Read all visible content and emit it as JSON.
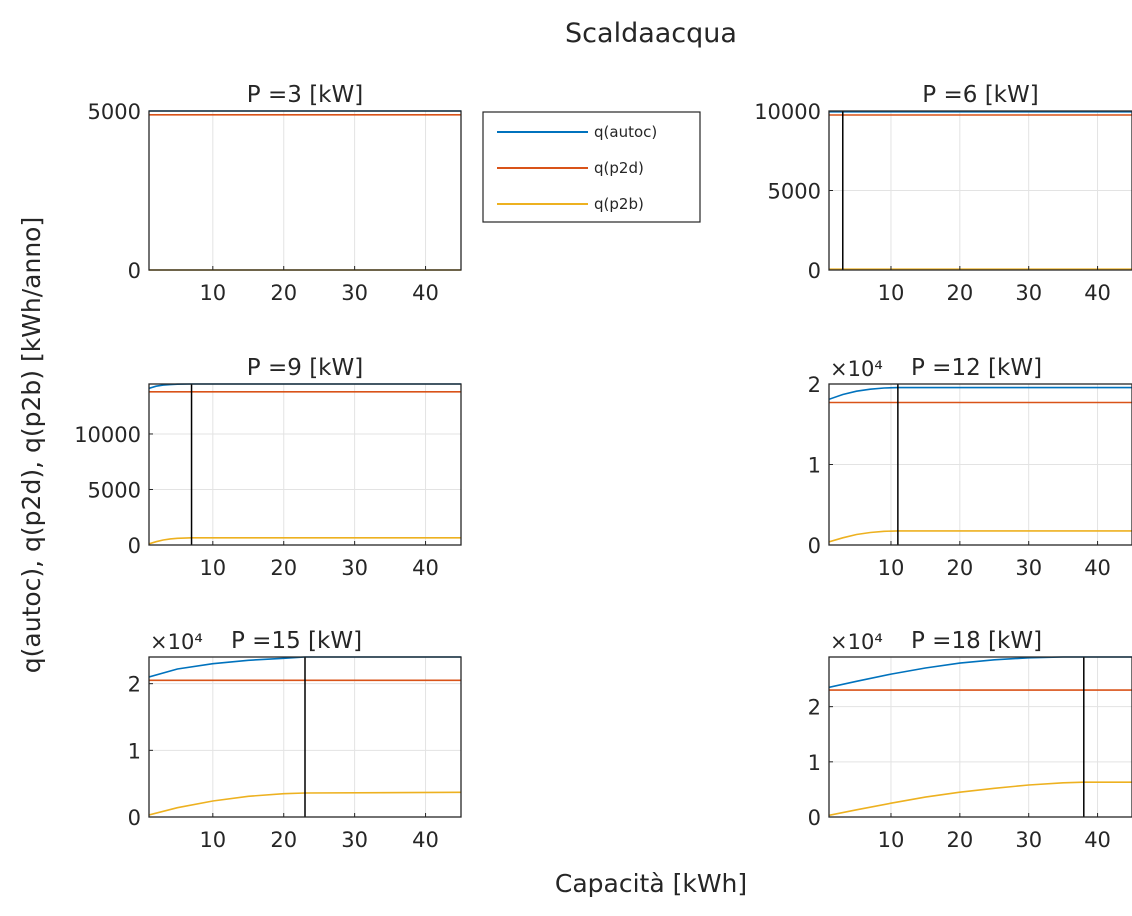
{
  "figure": {
    "title": "Scaldaacqua",
    "xlabel": "Capacità [kWh]",
    "ylabel": "q(autoc), q(p2d), q(p2b) [kWh/anno]"
  },
  "legend": {
    "position": "top-right of first panel",
    "entries": [
      "q(autoc)",
      "q(p2d)",
      "q(p2b)"
    ]
  },
  "colors": {
    "q(autoc)": "#0072bd",
    "q(p2d)": "#d95319",
    "q(p2b)": "#edb120",
    "marker_line": "#000000"
  },
  "chart_data": [
    {
      "type": "line",
      "title": "P =3 [kW]",
      "xlim": [
        1,
        45
      ],
      "ylim": [
        0,
        5000
      ],
      "xticks": [
        10,
        20,
        30,
        40
      ],
      "yticks": [
        0,
        5000
      ],
      "ytick_labels": [
        "0",
        "5000"
      ],
      "exponent_label": "",
      "grid": true,
      "marker_x": null,
      "series": [
        {
          "name": "q(autoc)",
          "x": [
            1,
            45
          ],
          "y": [
            5000,
            5000
          ]
        },
        {
          "name": "q(p2d)",
          "x": [
            1,
            45
          ],
          "y": [
            4880,
            4880
          ]
        },
        {
          "name": "q(p2b)",
          "x": [
            1,
            45
          ],
          "y": [
            0,
            0
          ]
        }
      ]
    },
    {
      "type": "line",
      "title": "P =6 [kW]",
      "xlim": [
        1,
        45
      ],
      "ylim": [
        0,
        10000
      ],
      "xticks": [
        10,
        20,
        30,
        40
      ],
      "yticks": [
        0,
        5000,
        10000
      ],
      "ytick_labels": [
        "0",
        "5000",
        "10000"
      ],
      "exponent_label": "",
      "grid": true,
      "marker_x": 3,
      "series": [
        {
          "name": "q(autoc)",
          "x": [
            1,
            45
          ],
          "y": [
            9950,
            9950
          ]
        },
        {
          "name": "q(p2d)",
          "x": [
            1,
            45
          ],
          "y": [
            9750,
            9750
          ]
        },
        {
          "name": "q(p2b)",
          "x": [
            1,
            45
          ],
          "y": [
            50,
            50
          ]
        }
      ]
    },
    {
      "type": "line",
      "title": "P =9 [kW]",
      "xlim": [
        1,
        45
      ],
      "ylim": [
        0,
        14500
      ],
      "xticks": [
        10,
        20,
        30,
        40
      ],
      "yticks": [
        0,
        5000,
        10000
      ],
      "ytick_labels": [
        "0",
        "5000",
        "10000"
      ],
      "exponent_label": "",
      "grid": true,
      "marker_x": 7,
      "series": [
        {
          "name": "q(autoc)",
          "x": [
            1,
            2,
            3,
            4,
            5,
            7,
            10,
            45
          ],
          "y": [
            14100,
            14300,
            14400,
            14450,
            14480,
            14500,
            14500,
            14500
          ]
        },
        {
          "name": "q(p2d)",
          "x": [
            1,
            45
          ],
          "y": [
            13800,
            13800
          ]
        },
        {
          "name": "q(p2b)",
          "x": [
            1,
            2,
            3,
            4,
            5,
            7,
            10,
            45
          ],
          "y": [
            100,
            300,
            450,
            550,
            600,
            650,
            650,
            650
          ]
        }
      ]
    },
    {
      "type": "line",
      "title": "P =12 [kW]",
      "xlim": [
        1,
        45
      ],
      "ylim": [
        0,
        20000
      ],
      "xticks": [
        10,
        20,
        30,
        40
      ],
      "yticks": [
        0,
        10000,
        20000
      ],
      "ytick_labels": [
        "0",
        "1",
        "2"
      ],
      "exponent_label": "×10⁴",
      "grid": true,
      "marker_x": 11,
      "series": [
        {
          "name": "q(autoc)",
          "x": [
            1,
            3,
            5,
            7,
            9,
            11,
            15,
            45
          ],
          "y": [
            18100,
            18700,
            19100,
            19350,
            19500,
            19550,
            19550,
            19550
          ]
        },
        {
          "name": "q(p2d)",
          "x": [
            1,
            45
          ],
          "y": [
            17700,
            17700
          ]
        },
        {
          "name": "q(p2b)",
          "x": [
            1,
            3,
            5,
            7,
            9,
            11,
            15,
            45
          ],
          "y": [
            400,
            900,
            1300,
            1550,
            1700,
            1750,
            1750,
            1750
          ]
        }
      ]
    },
    {
      "type": "line",
      "title": "P =15 [kW]",
      "xlim": [
        1,
        45
      ],
      "ylim": [
        0,
        24000
      ],
      "xticks": [
        10,
        20,
        30,
        40
      ],
      "yticks": [
        0,
        10000,
        20000
      ],
      "ytick_labels": [
        "0",
        "1",
        "2"
      ],
      "exponent_label": "×10⁴",
      "grid": true,
      "marker_x": 23,
      "series": [
        {
          "name": "q(autoc)",
          "x": [
            1,
            5,
            10,
            15,
            20,
            23,
            45
          ],
          "y": [
            21000,
            22200,
            23000,
            23500,
            23800,
            24000,
            24000
          ]
        },
        {
          "name": "q(p2d)",
          "x": [
            1,
            45
          ],
          "y": [
            20500,
            20500
          ]
        },
        {
          "name": "q(p2b)",
          "x": [
            1,
            5,
            10,
            15,
            20,
            23,
            45
          ],
          "y": [
            300,
            1400,
            2400,
            3100,
            3500,
            3600,
            3700
          ]
        }
      ]
    },
    {
      "type": "line",
      "title": "P =18 [kW]",
      "xlim": [
        1,
        45
      ],
      "ylim": [
        0,
        29000
      ],
      "xticks": [
        10,
        20,
        30,
        40
      ],
      "yticks": [
        0,
        10000,
        20000
      ],
      "ytick_labels": [
        "0",
        "1",
        "2"
      ],
      "exponent_label": "×10⁴",
      "grid": true,
      "marker_x": 38,
      "series": [
        {
          "name": "q(autoc)",
          "x": [
            1,
            5,
            10,
            15,
            20,
            25,
            30,
            35,
            38,
            45
          ],
          "y": [
            23500,
            24600,
            25900,
            27000,
            27900,
            28500,
            28850,
            29000,
            29000,
            29000
          ]
        },
        {
          "name": "q(p2d)",
          "x": [
            1,
            45
          ],
          "y": [
            23000,
            23000
          ]
        },
        {
          "name": "q(p2b)",
          "x": [
            1,
            5,
            10,
            15,
            20,
            25,
            30,
            35,
            38,
            45
          ],
          "y": [
            300,
            1300,
            2500,
            3600,
            4500,
            5200,
            5800,
            6200,
            6300,
            6300
          ]
        }
      ]
    }
  ]
}
